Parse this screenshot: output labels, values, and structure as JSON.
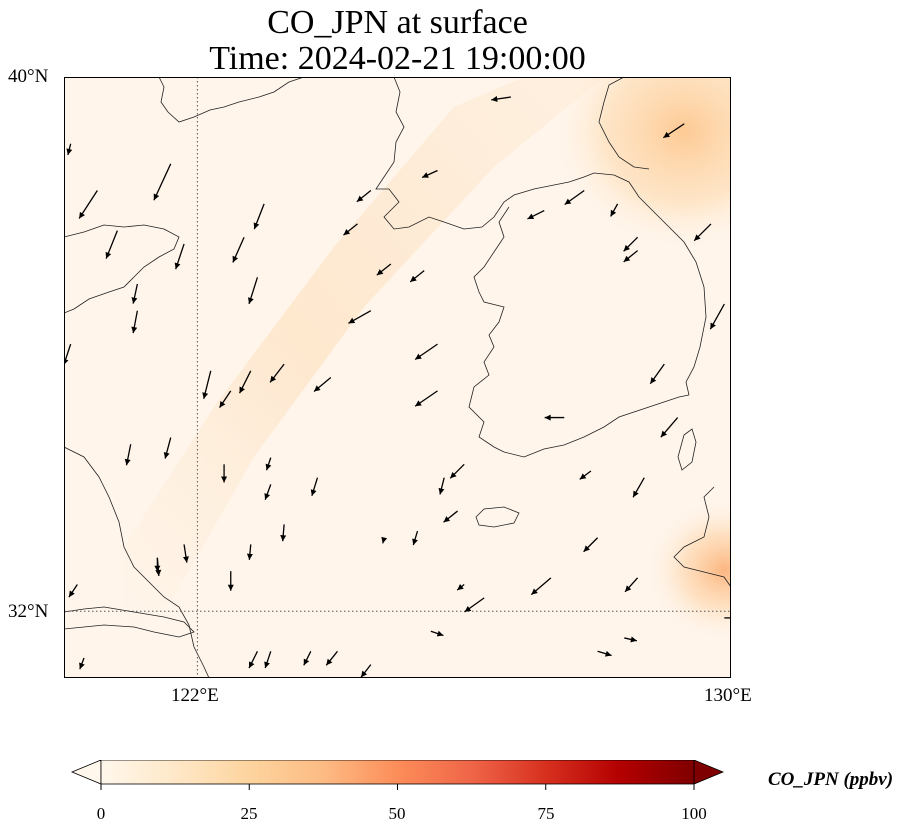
{
  "title": {
    "line1": "CO_JPN at surface",
    "line2": "Time: 2024-02-21 19:00:00"
  },
  "map": {
    "extent": {
      "lon_min": 120,
      "lon_max": 130,
      "lat_min": 31,
      "lat_max": 40
    },
    "lat_ticks": [
      {
        "value": 40,
        "label": "40°N"
      },
      {
        "value": 32,
        "label": "32°N"
      }
    ],
    "lon_ticks": [
      {
        "value": 122,
        "label": "122°E"
      },
      {
        "value": 130,
        "label": "130°E"
      }
    ],
    "gridlines": {
      "visible": true,
      "lon": [
        122
      ],
      "lat": [
        32
      ],
      "style": "dotted"
    },
    "field_background_color": "#fff5eb"
  },
  "colorbar": {
    "label": "CO_JPN (ppbv)",
    "min": 0,
    "max": 100,
    "extend": "both",
    "colormap": "Oranges/OrRd",
    "ticks": [
      "0",
      "25",
      "50",
      "75",
      "100"
    ],
    "colors": [
      "#fff7ec",
      "#fee8c8",
      "#fdd49e",
      "#fdbb84",
      "#fc8d59",
      "#ef6548",
      "#d7301f",
      "#b30000",
      "#7f0000"
    ]
  },
  "wind_vectors": [
    {
      "lon": 121.6,
      "lat": 38.7,
      "u": -1.2,
      "v": -2.6
    },
    {
      "lon": 120.5,
      "lat": 38.3,
      "u": -1.3,
      "v": -2.0
    },
    {
      "lon": 120.8,
      "lat": 37.7,
      "u": -0.8,
      "v": -2.0
    },
    {
      "lon": 121.8,
      "lat": 37.5,
      "u": -0.6,
      "v": -1.8
    },
    {
      "lon": 123.0,
      "lat": 38.1,
      "u": -0.7,
      "v": -1.8
    },
    {
      "lon": 122.7,
      "lat": 37.6,
      "u": -0.8,
      "v": -1.8
    },
    {
      "lon": 122.9,
      "lat": 37.0,
      "u": -0.6,
      "v": -1.9
    },
    {
      "lon": 121.1,
      "lat": 36.9,
      "u": -0.3,
      "v": -1.4
    },
    {
      "lon": 121.1,
      "lat": 36.5,
      "u": -0.3,
      "v": -1.6
    },
    {
      "lon": 122.2,
      "lat": 35.6,
      "u": -0.5,
      "v": -2.0
    },
    {
      "lon": 122.8,
      "lat": 35.6,
      "u": -0.8,
      "v": -1.6
    },
    {
      "lon": 123.3,
      "lat": 35.7,
      "u": -1.0,
      "v": -1.3
    },
    {
      "lon": 124.0,
      "lat": 35.5,
      "u": -1.2,
      "v": -1.0
    },
    {
      "lon": 124.6,
      "lat": 36.5,
      "u": -1.6,
      "v": -0.9
    },
    {
      "lon": 125.6,
      "lat": 36.0,
      "u": -1.6,
      "v": -1.1
    },
    {
      "lon": 125.6,
      "lat": 35.3,
      "u": -1.6,
      "v": -1.1
    },
    {
      "lon": 125.6,
      "lat": 38.6,
      "u": -1.1,
      "v": -0.5
    },
    {
      "lon": 126.7,
      "lat": 39.7,
      "u": -1.4,
      "v": -0.2
    },
    {
      "lon": 124.6,
      "lat": 38.3,
      "u": -1.0,
      "v": -0.8
    },
    {
      "lon": 124.4,
      "lat": 37.8,
      "u": -1.0,
      "v": -0.8
    },
    {
      "lon": 124.9,
      "lat": 37.2,
      "u": -1.0,
      "v": -0.8
    },
    {
      "lon": 125.4,
      "lat": 37.1,
      "u": -1.0,
      "v": -0.8
    },
    {
      "lon": 127.2,
      "lat": 38.0,
      "u": -1.2,
      "v": -0.6
    },
    {
      "lon": 127.8,
      "lat": 38.3,
      "u": -1.4,
      "v": -1.0
    },
    {
      "lon": 128.3,
      "lat": 38.1,
      "u": -0.5,
      "v": -0.9
    },
    {
      "lon": 128.6,
      "lat": 37.6,
      "u": -1.0,
      "v": -1.0
    },
    {
      "lon": 128.6,
      "lat": 37.4,
      "u": -1.0,
      "v": -0.8
    },
    {
      "lon": 129.3,
      "lat": 39.3,
      "u": -1.5,
      "v": -1.0
    },
    {
      "lon": 129.7,
      "lat": 37.8,
      "u": -1.2,
      "v": -1.2
    },
    {
      "lon": 129.9,
      "lat": 36.6,
      "u": -1.0,
      "v": -1.8
    },
    {
      "lon": 129.0,
      "lat": 35.7,
      "u": -1.0,
      "v": -1.4
    },
    {
      "lon": 129.2,
      "lat": 34.9,
      "u": -1.2,
      "v": -1.4
    },
    {
      "lon": 127.5,
      "lat": 34.9,
      "u": -1.4,
      "v": 0.0
    },
    {
      "lon": 127.9,
      "lat": 34.1,
      "u": -0.8,
      "v": -0.6
    },
    {
      "lon": 128.7,
      "lat": 34.0,
      "u": -0.8,
      "v": -1.4
    },
    {
      "lon": 128.0,
      "lat": 33.1,
      "u": -1.0,
      "v": -1.0
    },
    {
      "lon": 128.6,
      "lat": 32.5,
      "u": -0.9,
      "v": -1.0
    },
    {
      "lon": 127.3,
      "lat": 32.5,
      "u": -1.4,
      "v": -1.2
    },
    {
      "lon": 126.3,
      "lat": 32.2,
      "u": -1.4,
      "v": -1.0
    },
    {
      "lon": 126.0,
      "lat": 32.4,
      "u": -0.5,
      "v": -0.4
    },
    {
      "lon": 125.9,
      "lat": 33.5,
      "u": -1.0,
      "v": -0.8
    },
    {
      "lon": 124.8,
      "lat": 33.1,
      "u": -0.1,
      "v": -0.4
    },
    {
      "lon": 125.5,
      "lat": 31.7,
      "u": 0.9,
      "v": -0.3
    },
    {
      "lon": 126.4,
      "lat": 30.9,
      "u": 1.0,
      "v": -0.5
    },
    {
      "lon": 127.0,
      "lat": 30.9,
      "u": 1.0,
      "v": -0.1
    },
    {
      "lon": 128.0,
      "lat": 31.4,
      "u": 1.0,
      "v": -0.3
    },
    {
      "lon": 128.4,
      "lat": 31.6,
      "u": 0.9,
      "v": -0.2
    },
    {
      "lon": 129.9,
      "lat": 31.9,
      "u": 0.9,
      "v": 0.0
    },
    {
      "lon": 129.0,
      "lat": 30.8,
      "u": 0.8,
      "v": 0.0
    },
    {
      "lon": 125.3,
      "lat": 33.2,
      "u": -0.3,
      "v": -1.0
    },
    {
      "lon": 125.7,
      "lat": 34.0,
      "u": -0.3,
      "v": -1.2
    },
    {
      "lon": 126.0,
      "lat": 34.2,
      "u": -1.0,
      "v": -1.0
    },
    {
      "lon": 123.8,
      "lat": 34.0,
      "u": -0.4,
      "v": -1.3
    },
    {
      "lon": 123.1,
      "lat": 33.9,
      "u": -0.4,
      "v": -1.1
    },
    {
      "lon": 123.1,
      "lat": 34.3,
      "u": -0.3,
      "v": -0.9
    },
    {
      "lon": 123.3,
      "lat": 33.3,
      "u": -0.1,
      "v": -1.2
    },
    {
      "lon": 122.5,
      "lat": 32.6,
      "u": 0.0,
      "v": -1.4
    },
    {
      "lon": 122.8,
      "lat": 33.0,
      "u": -0.1,
      "v": -1.1
    },
    {
      "lon": 121.4,
      "lat": 32.8,
      "u": 0.1,
      "v": -1.3
    },
    {
      "lon": 121.8,
      "lat": 33.0,
      "u": 0.2,
      "v": -1.3
    },
    {
      "lon": 122.9,
      "lat": 31.4,
      "u": -0.6,
      "v": -1.2
    },
    {
      "lon": 123.1,
      "lat": 31.4,
      "u": -0.4,
      "v": -1.2
    },
    {
      "lon": 123.7,
      "lat": 31.4,
      "u": -0.5,
      "v": -1.0
    },
    {
      "lon": 124.1,
      "lat": 31.4,
      "u": -0.8,
      "v": -1.0
    },
    {
      "lon": 124.6,
      "lat": 31.2,
      "u": -0.7,
      "v": -0.9
    },
    {
      "lon": 121.0,
      "lat": 34.5,
      "u": -0.3,
      "v": -1.5
    },
    {
      "lon": 121.6,
      "lat": 34.6,
      "u": -0.4,
      "v": -1.5
    },
    {
      "lon": 122.5,
      "lat": 35.3,
      "u": -0.8,
      "v": -1.2
    },
    {
      "lon": 122.4,
      "lat": 34.2,
      "u": 0.0,
      "v": -1.3
    },
    {
      "lon": 120.2,
      "lat": 32.4,
      "u": -0.6,
      "v": -0.9
    },
    {
      "lon": 120.3,
      "lat": 31.3,
      "u": -0.3,
      "v": -0.8
    },
    {
      "lon": 121.4,
      "lat": 32.8,
      "u": 0.0,
      "v": -1.0
    },
    {
      "lon": 121.8,
      "lat": 31.0,
      "u": -0.4,
      "v": -0.8
    },
    {
      "lon": 120.1,
      "lat": 36.0,
      "u": -0.5,
      "v": -1.5
    },
    {
      "lon": 120.1,
      "lat": 39.0,
      "u": -0.2,
      "v": -0.8
    }
  ]
}
